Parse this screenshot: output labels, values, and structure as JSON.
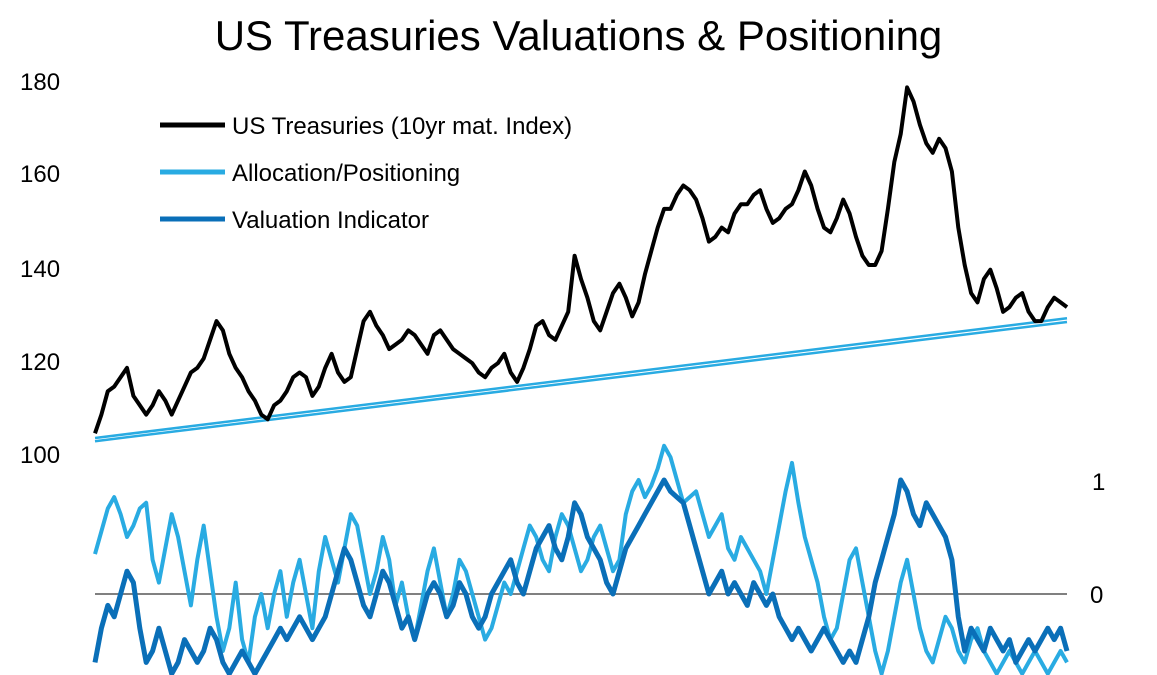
{
  "chart_data": {
    "type": "line",
    "title": "US Treasuries Valuations & Positioning",
    "legend_position": "top-left",
    "grid": false,
    "colors": {
      "treasuries": "#000000",
      "allocation": "#29abe2",
      "valuation": "#0a6fb8",
      "zero_line": "#808080"
    },
    "left_axis": {
      "ylim": [
        100,
        180
      ],
      "ticks": [
        "180",
        "160",
        "140",
        "120",
        "100"
      ]
    },
    "right_axis": {
      "ylim": [
        -0.7,
        1.25
      ],
      "ticks": [
        "1",
        "0"
      ]
    },
    "legend": [
      {
        "label": "US Treasuries (10yr mat. Index)",
        "color": "#000000"
      },
      {
        "label": "Allocation/Positioning",
        "color": "#29abe2"
      },
      {
        "label": "Valuation Indicator",
        "color": "#0a6fb8"
      }
    ],
    "series": [
      {
        "name": "US Treasuries (10yr mat. Index)",
        "axis": "left",
        "values": [
          104,
          108,
          113,
          114,
          116,
          118,
          112,
          110,
          108,
          110,
          113,
          111,
          108,
          111,
          114,
          117,
          118,
          120,
          124,
          128,
          126,
          121,
          118,
          116,
          113,
          111,
          108,
          107,
          110,
          111,
          113,
          116,
          117,
          116,
          112,
          114,
          118,
          121,
          117,
          115,
          116,
          122,
          128,
          130,
          127,
          125,
          122,
          123,
          124,
          126,
          125,
          123,
          121,
          125,
          126,
          124,
          122,
          121,
          120,
          119,
          117,
          116,
          118,
          119,
          121,
          117,
          115,
          118,
          122,
          127,
          128,
          125,
          124,
          127,
          130,
          142,
          137,
          133,
          128,
          126,
          130,
          134,
          136,
          133,
          129,
          132,
          138,
          143,
          148,
          152,
          152,
          155,
          157,
          156,
          154,
          150,
          145,
          146,
          148,
          147,
          151,
          153,
          153,
          155,
          156,
          152,
          149,
          150,
          152,
          153,
          156,
          160,
          157,
          152,
          148,
          147,
          150,
          154,
          151,
          146,
          142,
          140,
          140,
          143,
          152,
          162,
          168,
          178,
          175,
          170,
          166,
          164,
          167,
          165,
          160,
          148,
          140,
          134,
          132,
          137,
          139,
          135,
          130,
          131,
          133,
          134,
          130,
          128,
          128,
          131,
          133,
          132,
          131
        ]
      },
      {
        "name": "Allocation/Positioning",
        "axis": "right",
        "values": [
          0.35,
          0.55,
          0.75,
          0.85,
          0.7,
          0.5,
          0.6,
          0.75,
          0.8,
          0.3,
          0.1,
          0.4,
          0.7,
          0.5,
          0.2,
          -0.1,
          0.3,
          0.6,
          0.2,
          -0.2,
          -0.5,
          -0.3,
          0.1,
          -0.4,
          -0.6,
          -0.2,
          0.0,
          -0.3,
          0.0,
          0.2,
          -0.2,
          0.1,
          0.3,
          0.0,
          -0.3,
          0.2,
          0.5,
          0.3,
          0.1,
          0.4,
          0.7,
          0.6,
          0.3,
          0.0,
          0.2,
          0.5,
          0.3,
          -0.1,
          0.1,
          -0.2,
          -0.4,
          -0.1,
          0.2,
          0.4,
          0.1,
          -0.2,
          0.0,
          0.3,
          0.2,
          0.0,
          -0.2,
          -0.4,
          -0.3,
          -0.1,
          0.1,
          0.0,
          0.2,
          0.4,
          0.6,
          0.5,
          0.3,
          0.2,
          0.5,
          0.7,
          0.6,
          0.4,
          0.2,
          0.3,
          0.5,
          0.6,
          0.4,
          0.2,
          0.3,
          0.7,
          0.9,
          1.0,
          0.85,
          0.95,
          1.1,
          1.3,
          1.2,
          1.0,
          0.8,
          0.85,
          0.9,
          0.7,
          0.5,
          0.6,
          0.7,
          0.4,
          0.3,
          0.5,
          0.4,
          0.3,
          0.2,
          0.0,
          0.3,
          0.6,
          0.9,
          1.15,
          0.8,
          0.5,
          0.3,
          0.1,
          -0.2,
          -0.4,
          -0.3,
          0.0,
          0.3,
          0.4,
          0.1,
          -0.2,
          -0.5,
          -0.7,
          -0.5,
          -0.2,
          0.1,
          0.3,
          0.0,
          -0.3,
          -0.5,
          -0.6,
          -0.4,
          -0.2,
          -0.3,
          -0.5,
          -0.6,
          -0.4,
          -0.3,
          -0.5,
          -0.6,
          -0.7,
          -0.6,
          -0.5,
          -0.6,
          -0.7,
          -0.6,
          -0.5,
          -0.6,
          -0.7,
          -0.6,
          -0.5,
          -0.6
        ]
      },
      {
        "name": "Valuation Indicator",
        "axis": "right",
        "values": [
          -0.6,
          -0.3,
          -0.1,
          -0.2,
          0.0,
          0.2,
          0.1,
          -0.3,
          -0.6,
          -0.5,
          -0.3,
          -0.5,
          -0.7,
          -0.6,
          -0.4,
          -0.5,
          -0.6,
          -0.5,
          -0.3,
          -0.4,
          -0.6,
          -0.7,
          -0.6,
          -0.5,
          -0.6,
          -0.7,
          -0.6,
          -0.5,
          -0.4,
          -0.3,
          -0.4,
          -0.3,
          -0.2,
          -0.3,
          -0.4,
          -0.3,
          -0.2,
          0.0,
          0.2,
          0.4,
          0.3,
          0.1,
          -0.1,
          -0.2,
          0.0,
          0.2,
          0.1,
          -0.1,
          -0.3,
          -0.2,
          -0.4,
          -0.2,
          0.0,
          0.1,
          0.0,
          -0.2,
          -0.1,
          0.1,
          0.0,
          -0.2,
          -0.3,
          -0.2,
          0.0,
          0.1,
          0.2,
          0.3,
          0.1,
          0.0,
          0.2,
          0.4,
          0.5,
          0.6,
          0.4,
          0.3,
          0.5,
          0.8,
          0.7,
          0.5,
          0.4,
          0.3,
          0.1,
          0.0,
          0.2,
          0.4,
          0.5,
          0.6,
          0.7,
          0.8,
          0.9,
          1.0,
          0.9,
          0.85,
          0.8,
          0.6,
          0.4,
          0.2,
          0.0,
          0.1,
          0.2,
          0.0,
          0.1,
          0.0,
          -0.1,
          0.1,
          0.0,
          -0.1,
          0.0,
          -0.2,
          -0.3,
          -0.4,
          -0.3,
          -0.4,
          -0.5,
          -0.4,
          -0.3,
          -0.4,
          -0.5,
          -0.6,
          -0.5,
          -0.6,
          -0.4,
          -0.2,
          0.1,
          0.3,
          0.5,
          0.7,
          1.0,
          0.9,
          0.7,
          0.6,
          0.8,
          0.7,
          0.6,
          0.5,
          0.3,
          -0.2,
          -0.5,
          -0.3,
          -0.4,
          -0.5,
          -0.3,
          -0.4,
          -0.5,
          -0.4,
          -0.6,
          -0.5,
          -0.4,
          -0.5,
          -0.4,
          -0.3,
          -0.4,
          -0.3,
          -0.5
        ]
      },
      {
        "name": "",
        "axis": "left",
        "values": [
          102.3,
          127.8
        ]
      },
      {
        "name": "",
        "axis": "left",
        "values": [
          103.0,
          128.6
        ]
      }
    ]
  }
}
